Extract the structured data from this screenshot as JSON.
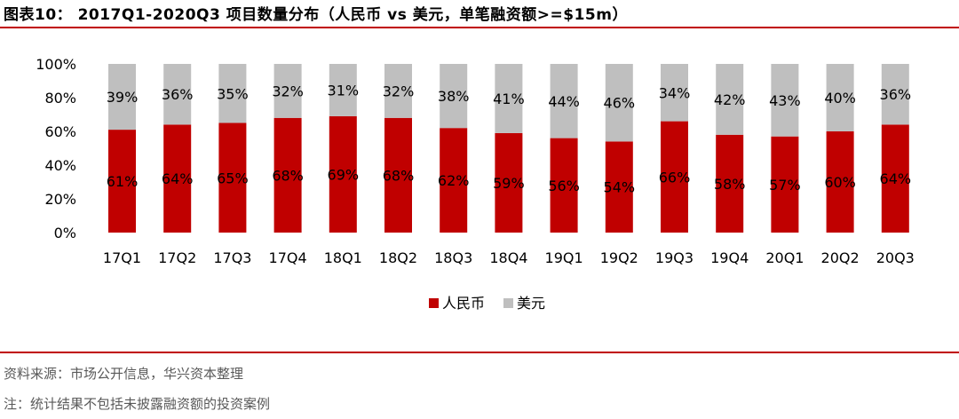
{
  "header": {
    "title": "图表10： 2017Q1-2020Q3 项目数量分布（人民币 vs 美元，单笔融资额>=$15m）"
  },
  "footer": {
    "source": "资料来源：市场公开信息，华兴资本整理",
    "note": "注：统计结果不包括未披露融资额的投资案例"
  },
  "colors": {
    "rmb": "#c00000",
    "usd": "#bfbfbf",
    "rule": "#c00000"
  },
  "chart_data": {
    "type": "bar",
    "stacked": true,
    "categories": [
      "17Q1",
      "17Q2",
      "17Q3",
      "17Q4",
      "18Q1",
      "18Q2",
      "18Q3",
      "18Q4",
      "19Q1",
      "19Q2",
      "19Q3",
      "19Q4",
      "20Q1",
      "20Q2",
      "20Q3"
    ],
    "series": [
      {
        "name": "人民币",
        "values": [
          61,
          64,
          65,
          68,
          69,
          68,
          62,
          59,
          56,
          54,
          66,
          58,
          57,
          60,
          64
        ],
        "labels": [
          "61%",
          "64%",
          "65%",
          "68%",
          "69%",
          "68%",
          "62%",
          "59%",
          "56%",
          "54%",
          "66%",
          "58%",
          "57%",
          "60%",
          "64%"
        ]
      },
      {
        "name": "美元",
        "values": [
          39,
          36,
          35,
          32,
          31,
          32,
          38,
          41,
          44,
          46,
          34,
          42,
          43,
          40,
          36
        ],
        "labels": [
          "39%",
          "36%",
          "35%",
          "32%",
          "31%",
          "32%",
          "38%",
          "41%",
          "44%",
          "46%",
          "34%",
          "42%",
          "43%",
          "40%",
          "36%"
        ]
      }
    ],
    "yticks": [
      "0%",
      "20%",
      "40%",
      "60%",
      "80%",
      "100%"
    ],
    "ylim": [
      0,
      100
    ],
    "legend_position": "bottom-center",
    "grid": false
  }
}
